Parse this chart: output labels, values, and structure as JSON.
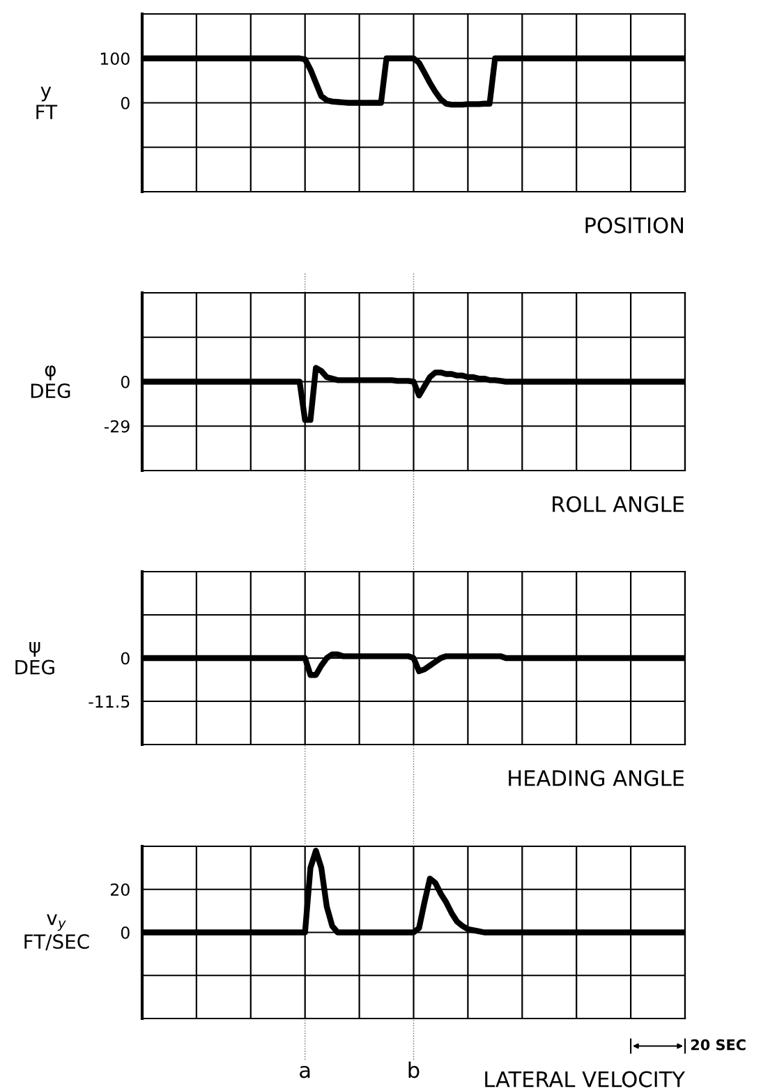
{
  "chart_data": [
    {
      "type": "line",
      "xlabel": "POSITION",
      "ylabel": "y\nFT",
      "ylim": [
        -200,
        200
      ],
      "categories": [
        null,
        null,
        null,
        null,
        null,
        null,
        null,
        null,
        null,
        null,
        null,
        null,
        null,
        null,
        null,
        null,
        null,
        null,
        null,
        null,
        null,
        null,
        null,
        null,
        null,
        null,
        null,
        null,
        null,
        null,
        null,
        null,
        null,
        null,
        null,
        null,
        null,
        null,
        null,
        null,
        null,
        null,
        null,
        null,
        null,
        null,
        null,
        null,
        null,
        null,
        null,
        null,
        null,
        null,
        null,
        null,
        null,
        null,
        null,
        null,
        null,
        null,
        null,
        null,
        null,
        null,
        null,
        null,
        null,
        null,
        null,
        null,
        null,
        null,
        null,
        null,
        null,
        null,
        null,
        null,
        null,
        null,
        null,
        null,
        null,
        null,
        null,
        null,
        null,
        null,
        null,
        null,
        null,
        null,
        null,
        null,
        null,
        null,
        null,
        null,
        null
      ],
      "yticks": [
        {
          "value": 200,
          "label": null
        },
        100,
        0,
        {
          "value": -100,
          "label": null
        },
        {
          "value": -200,
          "label": null
        }
      ],
      "grid": true,
      "tick_labels": "y",
      "series": [
        {
          "color": "#000000",
          "values": [
            100,
            100,
            100,
            100,
            100,
            100,
            100,
            100,
            100,
            100,
            100,
            100,
            100,
            100,
            100,
            100,
            100,
            100,
            100,
            100,
            100,
            100,
            100,
            100,
            100,
            100,
            100,
            100,
            100,
            100,
            98,
            75,
            45,
            15,
            6,
            3,
            2,
            1,
            0,
            0,
            0,
            0,
            0,
            0,
            0,
            100,
            100,
            100,
            100,
            100,
            100,
            90,
            68,
            45,
            25,
            8,
            -2,
            -4,
            -4,
            -4,
            -3,
            -3,
            -3,
            -2,
            -2,
            100,
            100,
            100,
            100,
            100,
            100,
            100,
            100,
            100,
            100,
            100,
            100,
            100,
            100,
            100,
            100,
            100,
            100,
            100,
            100,
            100,
            100,
            100,
            100,
            100,
            100,
            100,
            100,
            100,
            100,
            100,
            100,
            100,
            100,
            100,
            100
          ]
        }
      ]
    },
    {
      "type": "line",
      "xlabel": "ROLL ANGLE",
      "ylabel": "φ\nDEG",
      "ylim": [
        -58,
        58
      ],
      "categories": [
        null,
        null,
        null,
        null,
        null,
        null,
        null,
        null,
        null,
        null,
        null,
        null,
        null,
        null,
        null,
        null,
        null,
        null,
        null,
        null,
        null,
        null,
        null,
        null,
        null,
        null,
        null,
        null,
        null,
        null,
        null,
        null,
        null,
        null,
        null,
        null,
        null,
        null,
        null,
        null,
        null,
        null,
        null,
        null,
        null,
        null,
        null,
        null,
        null,
        null,
        null,
        null,
        null,
        null,
        null,
        null,
        null,
        null,
        null,
        null,
        null,
        null,
        null,
        null,
        null,
        null,
        null,
        null,
        null,
        null,
        null,
        null,
        null,
        null,
        null,
        null,
        null,
        null,
        null,
        null,
        null,
        null,
        null,
        null,
        null,
        null,
        null,
        null,
        null,
        null,
        null,
        null,
        null,
        null,
        null,
        null,
        null,
        null,
        null,
        null,
        null
      ],
      "yticks": [
        {
          "value": 58,
          "label": null
        },
        {
          "value": 29,
          "label": null
        },
        0,
        -29,
        {
          "value": -58,
          "label": null
        }
      ],
      "grid": true,
      "tick_labels": "y",
      "series": [
        {
          "color": "#000000",
          "values": [
            0,
            0,
            0,
            0,
            0,
            0,
            0,
            0,
            0,
            0,
            0,
            0,
            0,
            0,
            0,
            0,
            0,
            0,
            0,
            0,
            0,
            0,
            0,
            0,
            0,
            0,
            0,
            0,
            0,
            0,
            -25,
            -25,
            9,
            7,
            3,
            2,
            1,
            1,
            1,
            1,
            1,
            1,
            1,
            1,
            1,
            1,
            1,
            0.5,
            0.5,
            0.5,
            0,
            -9,
            -3,
            3,
            6,
            6,
            5,
            5,
            4,
            4,
            3,
            3,
            2,
            2,
            1,
            1,
            0.5,
            0,
            0,
            0,
            0,
            0,
            0,
            0,
            0,
            0,
            0,
            0,
            0,
            0,
            0,
            0,
            0,
            0,
            0,
            0,
            0,
            0,
            0,
            0,
            0,
            0,
            0,
            0,
            0,
            0,
            0,
            0,
            0,
            0,
            0
          ]
        }
      ]
    },
    {
      "type": "line",
      "xlabel": "HEADING ANGLE",
      "ylabel": "ψ\nDEG",
      "ylim": [
        -23,
        23
      ],
      "categories": [
        null,
        null,
        null,
        null,
        null,
        null,
        null,
        null,
        null,
        null,
        null,
        null,
        null,
        null,
        null,
        null,
        null,
        null,
        null,
        null,
        null,
        null,
        null,
        null,
        null,
        null,
        null,
        null,
        null,
        null,
        null,
        null,
        null,
        null,
        null,
        null,
        null,
        null,
        null,
        null,
        null,
        null,
        null,
        null,
        null,
        null,
        null,
        null,
        null,
        null,
        null,
        null,
        null,
        null,
        null,
        null,
        null,
        null,
        null,
        null,
        null,
        null,
        null,
        null,
        null,
        null,
        null,
        null,
        null,
        null,
        null,
        null,
        null,
        null,
        null,
        null,
        null,
        null,
        null,
        null,
        null,
        null,
        null,
        null,
        null,
        null,
        null,
        null,
        null,
        null,
        null,
        null,
        null,
        null,
        null,
        null,
        null,
        null,
        null,
        null,
        null
      ],
      "yticks": [
        {
          "value": 23,
          "label": null
        },
        {
          "value": 11.5,
          "label": null
        },
        0,
        -11.5,
        {
          "value": -23,
          "label": null
        }
      ],
      "grid": true,
      "tick_labels": "y",
      "series": [
        {
          "color": "#000000",
          "values": [
            0,
            0,
            0,
            0,
            0,
            0,
            0,
            0,
            0,
            0,
            0,
            0,
            0,
            0,
            0,
            0,
            0,
            0,
            0,
            0,
            0,
            0,
            0,
            0,
            0,
            0,
            0,
            0,
            0,
            0,
            0,
            -4.5,
            -4.5,
            -2,
            0,
            1,
            1,
            0.5,
            0.5,
            0.5,
            0.5,
            0.5,
            0.5,
            0.5,
            0.5,
            0.5,
            0.5,
            0.5,
            0.5,
            0.5,
            0,
            -3.5,
            -3,
            -2,
            -1,
            0,
            0.5,
            0.5,
            0.5,
            0.5,
            0.5,
            0.5,
            0.5,
            0.5,
            0.5,
            0.5,
            0.5,
            0,
            0,
            0,
            0,
            0,
            0,
            0,
            0,
            0,
            0,
            0,
            0,
            0,
            0,
            0,
            0,
            0,
            0,
            0,
            0,
            0,
            0,
            0,
            0,
            0,
            0,
            0,
            0,
            0,
            0,
            0,
            0,
            0,
            0
          ]
        }
      ]
    },
    {
      "type": "line",
      "xlabel": "LATERAL VELOCITY",
      "ylabel": "v$_{y}$\nFT/SEC",
      "ylim": [
        -40,
        40
      ],
      "categories": [
        null,
        null,
        null,
        null,
        null,
        null,
        null,
        null,
        null,
        null,
        null,
        null,
        null,
        null,
        null,
        null,
        null,
        null,
        null,
        null,
        null,
        null,
        null,
        null,
        null,
        null,
        null,
        null,
        null,
        null,
        null,
        null,
        null,
        null,
        null,
        null,
        null,
        null,
        null,
        null,
        null,
        null,
        null,
        null,
        null,
        null,
        null,
        null,
        null,
        null,
        null,
        null,
        null,
        null,
        null,
        null,
        null,
        null,
        null,
        null,
        null,
        null,
        null,
        null,
        null,
        null,
        null,
        null,
        null,
        null,
        null,
        null,
        null,
        null,
        null,
        null,
        null,
        null,
        null,
        null,
        null,
        null,
        null,
        null,
        null,
        null,
        null,
        null,
        null,
        null,
        null,
        null,
        null,
        null,
        null,
        null,
        null,
        null,
        null,
        null,
        null
      ],
      "yticks": [
        {
          "value": 40,
          "label": null
        },
        20,
        0,
        {
          "value": -20,
          "label": null
        },
        {
          "value": -40,
          "label": null
        }
      ],
      "grid": true,
      "tick_labels": "y",
      "series": [
        {
          "color": "#000000",
          "values": [
            0,
            0,
            0,
            0,
            0,
            0,
            0,
            0,
            0,
            0,
            0,
            0,
            0,
            0,
            0,
            0,
            0,
            0,
            0,
            0,
            0,
            0,
            0,
            0,
            0,
            0,
            0,
            0,
            0,
            0,
            0,
            30,
            38,
            30,
            12,
            3,
            0,
            0,
            0,
            0,
            0,
            0,
            0,
            0,
            0,
            0,
            0,
            0,
            0,
            0,
            0,
            2,
            14,
            25,
            23,
            18,
            14,
            9,
            5,
            3,
            1.5,
            1,
            0.5,
            0,
            0,
            0,
            0,
            0,
            0,
            0,
            0,
            0,
            0,
            0,
            0,
            0,
            0,
            0,
            0,
            0,
            0,
            0,
            0,
            0,
            0,
            0,
            0,
            0,
            0,
            0,
            0,
            0,
            0,
            0,
            0,
            0,
            0,
            0,
            0,
            0,
            0
          ]
        }
      ],
      "annotations": [
        "a",
        "b",
        "20 SEC"
      ]
    }
  ]
}
